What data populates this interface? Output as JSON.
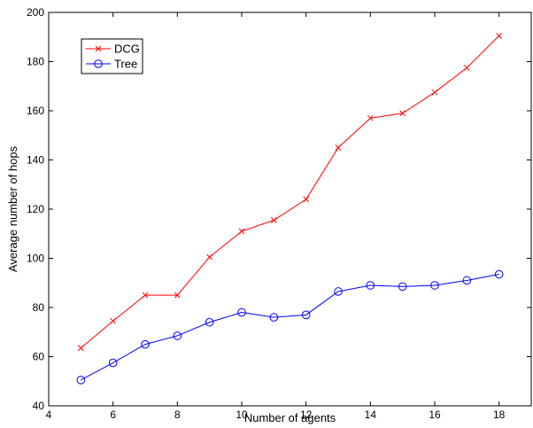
{
  "chart_data": {
    "type": "line",
    "title": "",
    "xlabel": "Number of agents",
    "ylabel": "Average number of hops",
    "xlim": [
      4,
      19
    ],
    "ylim": [
      40,
      200
    ],
    "xticks": [
      4,
      6,
      8,
      10,
      12,
      14,
      16,
      18
    ],
    "yticks": [
      40,
      60,
      80,
      100,
      120,
      140,
      160,
      180,
      200
    ],
    "grid": false,
    "legend_position": "top-left",
    "x": [
      5,
      6,
      7,
      8,
      9,
      10,
      11,
      12,
      13,
      14,
      15,
      16,
      17,
      18
    ],
    "series": [
      {
        "name": "DCG",
        "color": "#ff0000",
        "marker": "x",
        "values": [
          63.5,
          74.5,
          85.0,
          85.0,
          100.5,
          111.0,
          115.5,
          124.0,
          145.0,
          157.0,
          159.0,
          167.5,
          177.5,
          190.5
        ]
      },
      {
        "name": "Tree",
        "color": "#0000ff",
        "marker": "circle",
        "values": [
          50.5,
          57.5,
          65.0,
          68.5,
          74.0,
          78.0,
          76.0,
          77.0,
          86.5,
          89.0,
          88.5,
          89.0,
          91.0,
          93.5
        ]
      }
    ]
  }
}
